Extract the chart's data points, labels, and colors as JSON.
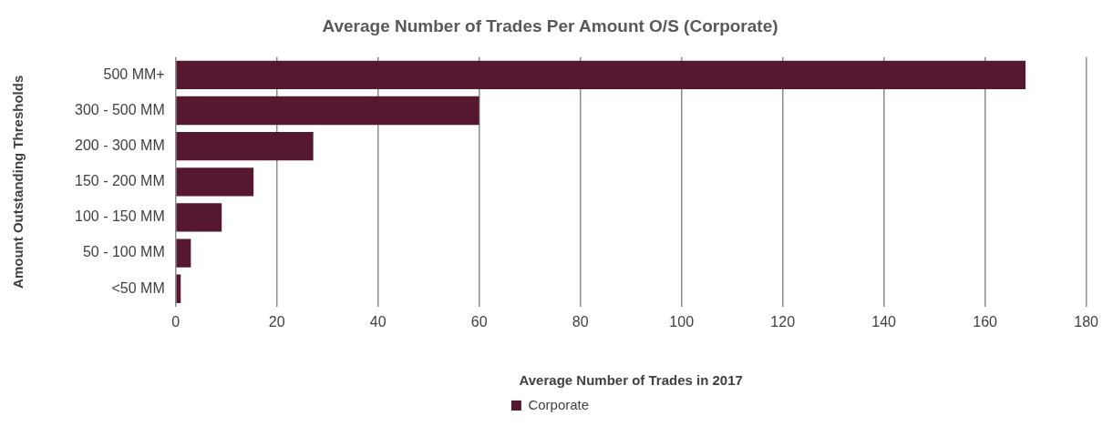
{
  "chart_data": {
    "type": "bar",
    "orientation": "horizontal",
    "title": "Average Number of Trades Per Amount O/S (Corporate)",
    "xlabel": "Average Number of Trades in 2017",
    "ylabel": "Amount Outstanding Thresholds",
    "categories": [
      "500 MM+",
      "300 - 500 MM",
      "200 - 300 MM",
      "150 - 200 MM",
      "100 - 150 MM",
      "50 - 100 MM",
      "<50 MM"
    ],
    "series": [
      {
        "name": "Corporate",
        "color": "#561830",
        "values": [
          168,
          60,
          27.2,
          15.4,
          9.1,
          3.0,
          1.0
        ]
      }
    ],
    "xlim": [
      0,
      180
    ],
    "xticks": [
      0,
      20,
      40,
      60,
      80,
      100,
      120,
      140,
      160,
      180
    ],
    "grid": "x",
    "legend": "bottom"
  }
}
